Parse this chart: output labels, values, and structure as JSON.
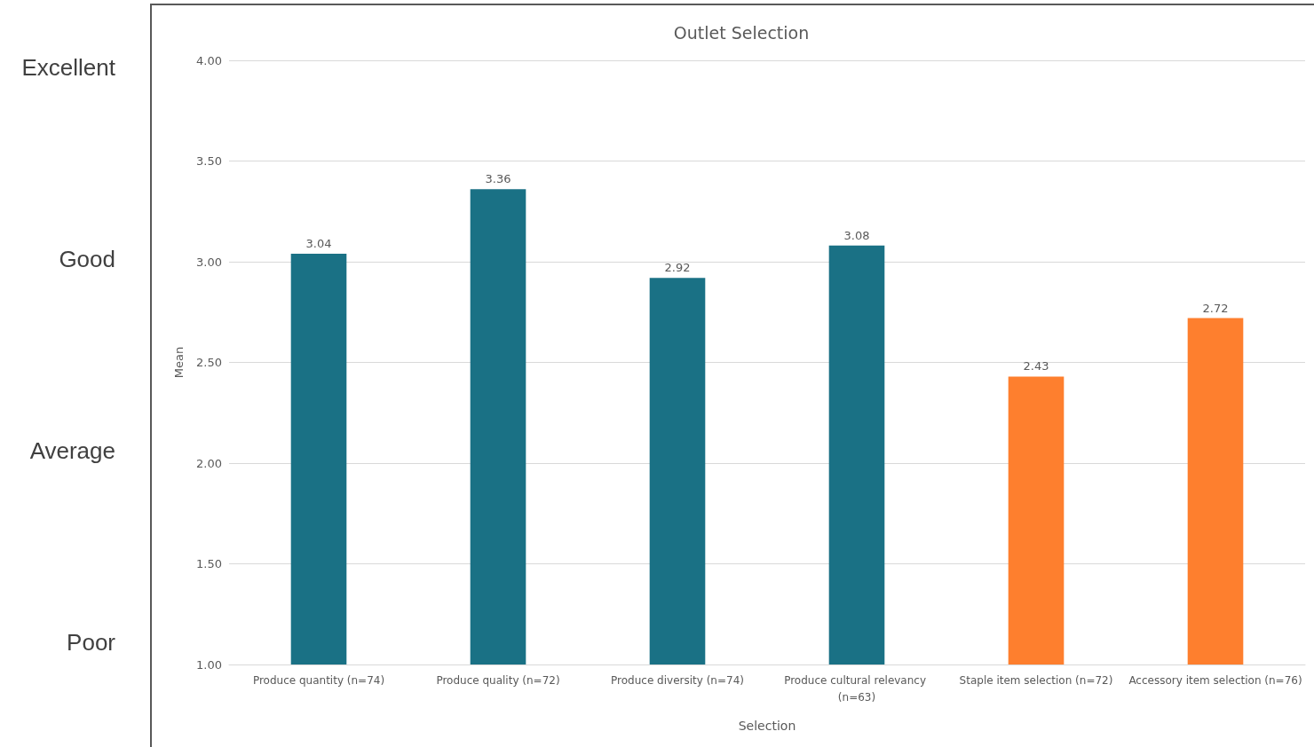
{
  "chart_data": {
    "type": "bar",
    "title": "Outlet Selection",
    "xlabel": "Selection",
    "ylabel": "Mean",
    "categories": [
      "Produce quantity (n=74)",
      "Produce quality (n=72)",
      "Produce diversity (n=74)",
      "Produce cultural relevancy (n=63)",
      "Staple item selection (n=72)",
      "Accessory item selection (n=76)"
    ],
    "values": [
      3.04,
      3.36,
      2.92,
      3.08,
      2.43,
      2.72
    ],
    "colors": [
      "#1a7185",
      "#1a7185",
      "#1a7185",
      "#1a7185",
      "#fe7f2e",
      "#fe7f2e"
    ],
    "ylim": [
      1,
      4
    ],
    "yticks": [
      {
        "value": 1,
        "label": "1.00"
      },
      {
        "value": 1.5,
        "label": "1.50"
      },
      {
        "value": 2,
        "label": "2.00"
      },
      {
        "value": 2.5,
        "label": "2.50"
      },
      {
        "value": 3,
        "label": "3.00"
      },
      {
        "value": 3.5,
        "label": "3.50"
      },
      {
        "value": 4,
        "label": "4.00"
      }
    ],
    "annotations": [
      "Excellent",
      "Good",
      "Average",
      "Poor"
    ],
    "data_labels": true,
    "grid": "y"
  }
}
